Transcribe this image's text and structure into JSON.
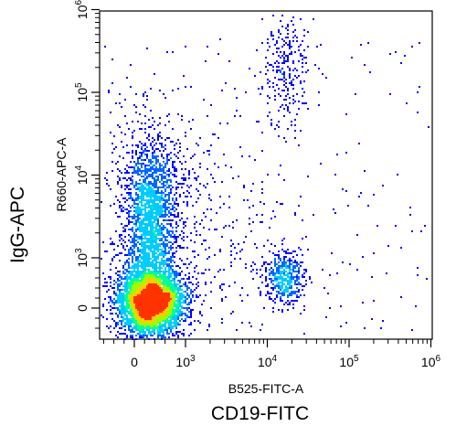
{
  "chart_data": {
    "type": "scatter",
    "plot_style": "flow cytometry pseudocolor density dot plot",
    "x_axis": {
      "label": "B525-FITC-A",
      "scale": "biexponential",
      "range": [
        -1000,
        1000000
      ],
      "major_ticks": [
        {
          "value": 0,
          "base": "0",
          "exp": ""
        },
        {
          "value": 1000,
          "base": "10",
          "exp": "3"
        },
        {
          "value": 10000,
          "base": "10",
          "exp": "4"
        },
        {
          "value": 100000,
          "base": "10",
          "exp": "5"
        },
        {
          "value": 1000000,
          "base": "10",
          "exp": "6"
        }
      ]
    },
    "y_axis": {
      "label": "R660-APC-A",
      "scale": "biexponential",
      "range": [
        -500,
        1000000
      ],
      "major_ticks": [
        {
          "value": 0,
          "base": "0",
          "exp": ""
        },
        {
          "value": 1000,
          "base": "10",
          "exp": "3"
        },
        {
          "value": 10000,
          "base": "10",
          "exp": "4"
        },
        {
          "value": 100000,
          "base": "10",
          "exp": "5"
        },
        {
          "value": 1000000,
          "base": "10",
          "exp": "6"
        }
      ]
    },
    "outer_labels": {
      "x": "CD19-FITC",
      "y": "IgG-APC"
    },
    "populations": [
      {
        "x_center": 300,
        "y_center": 150,
        "event_density": "very high"
      },
      {
        "x_center": 250,
        "y_center": 3000,
        "event_density": "high"
      },
      {
        "x_center": 15000,
        "y_center": 600,
        "event_density": "medium"
      },
      {
        "x_center": 16000,
        "y_center": 150000,
        "event_density": "low"
      }
    ],
    "density_colors": [
      "#0000ff",
      "#0066ff",
      "#00ccff",
      "#00ff99",
      "#99ff00",
      "#ffcc00",
      "#ff3300"
    ],
    "grid": false,
    "legend": "none"
  }
}
